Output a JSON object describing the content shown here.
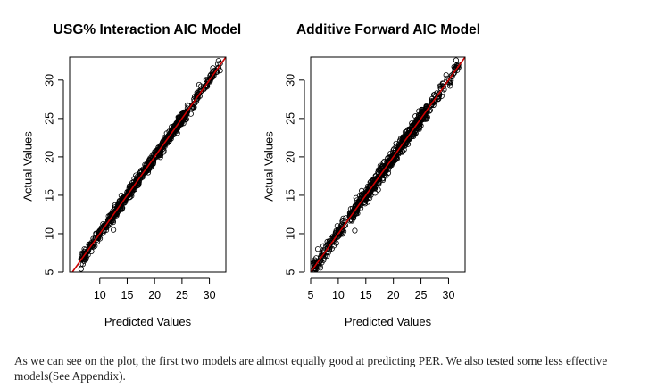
{
  "chart_data": [
    {
      "type": "scatter",
      "title": "USG% Interaction AIC Model",
      "xlabel": "Predicted Values",
      "ylabel": "Actual Values",
      "xlim": [
        4.5,
        33
      ],
      "ylim": [
        5,
        33
      ],
      "xticks": [
        10,
        15,
        20,
        25,
        30
      ],
      "yticks": [
        5,
        10,
        15,
        20,
        25,
        30
      ],
      "reference_line": {
        "intercept": 0,
        "slope": 1,
        "color": "#cc0000"
      },
      "points": {
        "generator": "dense cloud along y = x",
        "x_range": [
          6.5,
          32
        ],
        "spread_sd": 0.35,
        "count": 800,
        "outliers": [
          [
            7.2,
            8.0
          ],
          [
            8.0,
            8.6
          ],
          [
            9.1,
            8.4
          ],
          [
            12.5,
            10.5
          ],
          [
            6.6,
            5.4
          ],
          [
            30.8,
            31.2
          ]
        ]
      }
    },
    {
      "type": "scatter",
      "title": "Additive Forward AIC Model",
      "xlabel": "Predicted Values",
      "ylabel": "Actual Values",
      "xlim": [
        5,
        33
      ],
      "ylim": [
        5,
        33
      ],
      "xticks": [
        5,
        10,
        15,
        20,
        25,
        30
      ],
      "yticks": [
        5,
        10,
        15,
        20,
        25,
        30
      ],
      "reference_line": {
        "intercept": 0,
        "slope": 1,
        "color": "#cc0000"
      },
      "points": {
        "generator": "dense cloud along y = x",
        "x_range": [
          5.5,
          32
        ],
        "spread_sd": 0.5,
        "count": 800,
        "outliers": [
          [
            6.3,
            8.0
          ],
          [
            7.3,
            8.4
          ],
          [
            8.5,
            8.6
          ],
          [
            13.0,
            10.4
          ],
          [
            5.8,
            5.4
          ],
          [
            31.8,
            32.0
          ]
        ]
      }
    }
  ],
  "caption": "As we can see on the plot, the first two models are almost equally good at predicting PER. We also tested some less effective models(See Appendix)."
}
